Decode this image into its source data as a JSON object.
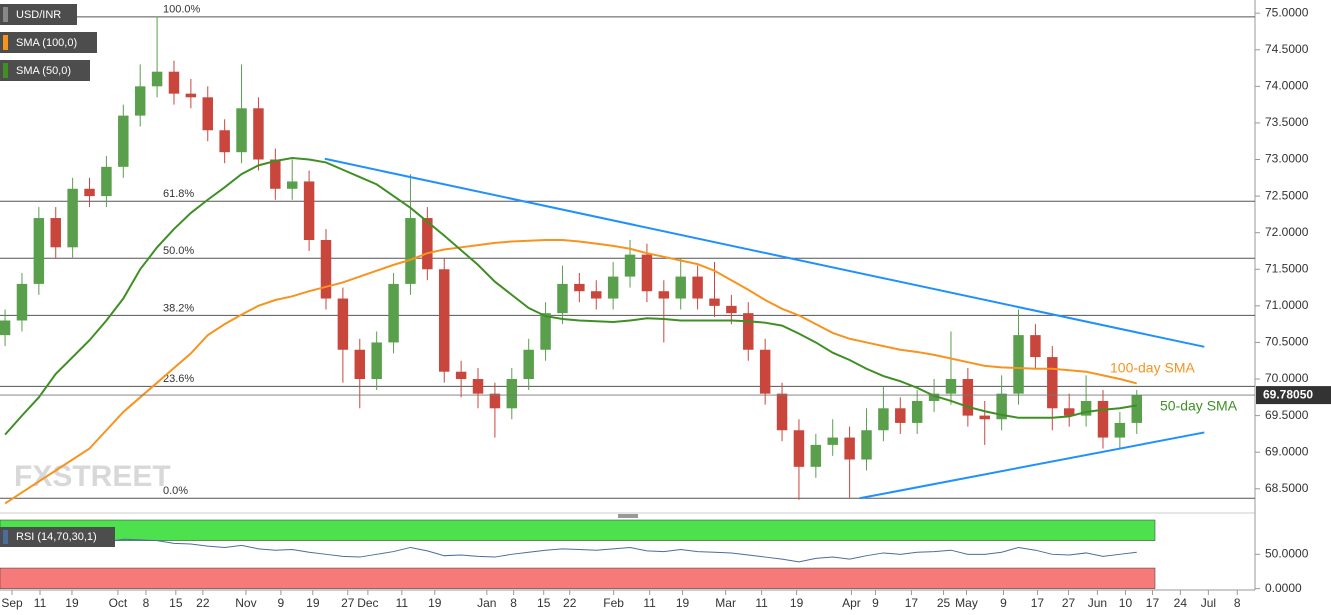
{
  "chart_data": [
    {
      "type": "candlestick",
      "title": "USD/INR",
      "watermark": "FXSTREET",
      "x": [
        0,
        1,
        2,
        3,
        4,
        5,
        6,
        7,
        8,
        9,
        10,
        11,
        12,
        13,
        14,
        15,
        16,
        17,
        18,
        19,
        20,
        21,
        22,
        23,
        24,
        25,
        26,
        27,
        28,
        29,
        30,
        31,
        32,
        33,
        34,
        35,
        36,
        37,
        38,
        39,
        40,
        41,
        42,
        43,
        44,
        45,
        46,
        47,
        48,
        49,
        50,
        51,
        52,
        53,
        54,
        55,
        56,
        57,
        58,
        59,
        60,
        61,
        62,
        63,
        64,
        65,
        66,
        67
      ],
      "open": [
        70.6,
        70.8,
        71.3,
        72.2,
        71.8,
        72.6,
        72.5,
        72.9,
        73.6,
        74.0,
        74.2,
        73.9,
        73.85,
        73.4,
        73.1,
        73.7,
        73.0,
        72.6,
        72.7,
        71.9,
        71.1,
        70.4,
        70.0,
        70.5,
        71.3,
        72.2,
        71.5,
        70.1,
        70.0,
        69.8,
        69.6,
        70.0,
        70.4,
        70.9,
        71.3,
        71.2,
        71.1,
        71.4,
        71.7,
        71.2,
        71.1,
        71.4,
        71.1,
        71.0,
        70.9,
        70.4,
        69.8,
        69.3,
        68.8,
        69.1,
        69.2,
        68.9,
        69.3,
        69.6,
        69.4,
        69.7,
        69.8,
        70.0,
        69.5,
        69.45,
        69.8,
        70.6,
        70.3,
        69.6,
        69.5,
        69.7,
        69.2,
        69.4
      ],
      "high": [
        70.95,
        71.45,
        72.35,
        72.35,
        72.75,
        72.75,
        73.05,
        73.75,
        74.3,
        74.95,
        74.35,
        74.1,
        74.0,
        73.55,
        74.3,
        73.85,
        73.15,
        73.0,
        72.85,
        72.05,
        71.25,
        70.55,
        70.65,
        71.45,
        72.8,
        72.35,
        71.65,
        70.25,
        70.15,
        69.95,
        70.15,
        70.55,
        71.05,
        71.55,
        71.45,
        71.35,
        71.6,
        71.9,
        71.85,
        71.35,
        71.65,
        71.55,
        71.6,
        71.15,
        71.05,
        70.55,
        69.95,
        69.45,
        69.25,
        69.45,
        69.35,
        69.6,
        69.9,
        69.75,
        69.85,
        70.0,
        70.65,
        70.15,
        69.7,
        70.05,
        70.95,
        70.75,
        70.45,
        69.8,
        70.05,
        69.85,
        69.55,
        69.85
      ],
      "low": [
        70.45,
        70.65,
        71.15,
        71.65,
        71.65,
        72.35,
        72.35,
        72.75,
        73.45,
        73.85,
        73.75,
        73.7,
        73.25,
        72.95,
        72.95,
        72.85,
        72.45,
        72.45,
        71.75,
        70.95,
        69.95,
        69.6,
        69.85,
        70.35,
        71.15,
        71.35,
        69.95,
        69.75,
        69.6,
        69.2,
        69.45,
        69.85,
        70.25,
        70.75,
        71.05,
        70.95,
        70.95,
        71.25,
        71.05,
        70.5,
        70.95,
        70.95,
        70.85,
        70.75,
        70.25,
        69.65,
        69.15,
        68.35,
        68.65,
        68.95,
        68.37,
        68.75,
        69.15,
        69.25,
        69.25,
        69.55,
        69.65,
        69.35,
        69.1,
        69.3,
        69.65,
        70.15,
        69.3,
        69.35,
        69.35,
        69.05,
        69.05,
        69.25
      ],
      "close": [
        70.8,
        71.3,
        72.2,
        71.8,
        72.6,
        72.5,
        72.9,
        73.6,
        74.0,
        74.2,
        73.9,
        73.85,
        73.4,
        73.1,
        73.7,
        73.0,
        72.6,
        72.7,
        71.9,
        71.1,
        70.4,
        70.0,
        70.5,
        71.3,
        72.2,
        71.5,
        70.1,
        70.0,
        69.8,
        69.6,
        70.0,
        70.4,
        70.9,
        71.3,
        71.2,
        71.1,
        71.4,
        71.7,
        71.2,
        71.1,
        71.4,
        71.1,
        71.0,
        70.9,
        70.4,
        69.8,
        69.3,
        68.8,
        69.1,
        69.2,
        68.9,
        69.3,
        69.6,
        69.4,
        69.7,
        69.8,
        70.0,
        69.5,
        69.45,
        69.8,
        70.6,
        70.3,
        69.6,
        69.5,
        69.7,
        69.2,
        69.4,
        69.78
      ],
      "up_color": "#5a9f4c",
      "down_color": "#c9463d",
      "overlays": [
        {
          "name": "SMA (100,0)",
          "color": "#f7931e",
          "values": [
            68.3,
            68.45,
            68.6,
            68.75,
            68.9,
            69.05,
            69.3,
            69.55,
            69.75,
            69.95,
            70.15,
            70.35,
            70.6,
            70.75,
            70.88,
            71.0,
            71.08,
            71.13,
            71.2,
            71.26,
            71.32,
            71.4,
            71.48,
            71.56,
            71.63,
            71.72,
            71.77,
            71.8,
            71.83,
            71.86,
            71.88,
            71.89,
            71.9,
            71.9,
            71.88,
            71.85,
            71.82,
            71.78,
            71.72,
            71.67,
            71.62,
            71.57,
            71.48,
            71.35,
            71.22,
            71.08,
            70.96,
            70.87,
            70.75,
            70.63,
            70.55,
            70.5,
            70.45,
            70.4,
            70.37,
            70.33,
            70.28,
            70.23,
            70.18,
            70.16,
            70.15,
            70.14,
            70.14,
            70.12,
            70.1,
            70.05,
            70.0,
            69.94
          ]
        },
        {
          "name": "SMA (50,0)",
          "color": "#3f8f25",
          "values": [
            69.24,
            69.5,
            69.75,
            70.07,
            70.3,
            70.53,
            70.8,
            71.1,
            71.5,
            71.8,
            72.05,
            72.27,
            72.45,
            72.62,
            72.8,
            72.92,
            72.98,
            73.02,
            73.0,
            72.96,
            72.86,
            72.76,
            72.66,
            72.5,
            72.34,
            72.15,
            71.96,
            71.76,
            71.56,
            71.33,
            71.15,
            70.97,
            70.86,
            70.82,
            70.8,
            70.79,
            70.78,
            70.8,
            70.83,
            70.82,
            70.8,
            70.8,
            70.8,
            70.8,
            70.79,
            70.77,
            70.73,
            70.62,
            70.5,
            70.36,
            70.26,
            70.14,
            70.04,
            69.97,
            69.88,
            69.77,
            69.7,
            69.62,
            69.56,
            69.51,
            69.47,
            69.47,
            69.47,
            69.49,
            69.55,
            69.58,
            69.6,
            69.64
          ]
        }
      ],
      "annotations": [
        {
          "text": "100-day SMA",
          "color": "#f7931e"
        },
        {
          "text": "50-day SMA",
          "color": "#3f8f25"
        }
      ],
      "levels": [
        {
          "label": "100.0%",
          "value": 74.95
        },
        {
          "label": "61.8%",
          "value": 72.43
        },
        {
          "label": "50.0%",
          "value": 71.65
        },
        {
          "label": "38.2%",
          "value": 70.87
        },
        {
          "label": "23.6%",
          "value": 69.9
        },
        {
          "label": "0.0%",
          "value": 68.37
        }
      ],
      "trendlines": [
        {
          "color": "#1e90ff",
          "x": [
            18.93,
            71.0
          ],
          "values": [
            73.01,
            70.44
          ]
        },
        {
          "color": "#1e90ff",
          "x": [
            50.59,
            71.0
          ],
          "values": [
            68.37,
            69.27
          ]
        }
      ],
      "last_price": {
        "value": 69.7805,
        "label": "69.78050"
      },
      "xlim": [
        -0.3,
        74
      ],
      "xticks": [
        {
          "value": 0.41,
          "label": "Sep"
        },
        {
          "value": 2.07,
          "label": "11"
        },
        {
          "value": 3.96,
          "label": "19"
        },
        {
          "value": 6.68,
          "label": "Oct"
        },
        {
          "value": 8.34,
          "label": "8"
        },
        {
          "value": 10.11,
          "label": "15"
        },
        {
          "value": 11.71,
          "label": "22"
        },
        {
          "value": 14.26,
          "label": "Nov"
        },
        {
          "value": 16.33,
          "label": "9"
        },
        {
          "value": 18.22,
          "label": "19"
        },
        {
          "value": 20.29,
          "label": "27"
        },
        {
          "value": 21.48,
          "label": "Dec"
        },
        {
          "value": 23.49,
          "label": "11"
        },
        {
          "value": 25.44,
          "label": "19"
        },
        {
          "value": 28.52,
          "label": "Jan"
        },
        {
          "value": 30.11,
          "label": "8"
        },
        {
          "value": 31.89,
          "label": "15"
        },
        {
          "value": 33.43,
          "label": "22"
        },
        {
          "value": 36.03,
          "label": "Feb"
        },
        {
          "value": 38.16,
          "label": "11"
        },
        {
          "value": 40.11,
          "label": "19"
        },
        {
          "value": 42.66,
          "label": "Mar"
        },
        {
          "value": 44.79,
          "label": "11"
        },
        {
          "value": 46.86,
          "label": "19"
        },
        {
          "value": 50.11,
          "label": "Apr"
        },
        {
          "value": 51.53,
          "label": "9"
        },
        {
          "value": 53.66,
          "label": "17"
        },
        {
          "value": 55.56,
          "label": "25"
        },
        {
          "value": 56.92,
          "label": "May"
        },
        {
          "value": 59.11,
          "label": "9"
        },
        {
          "value": 61.12,
          "label": "17"
        },
        {
          "value": 62.96,
          "label": "27"
        },
        {
          "value": 64.67,
          "label": "Jun"
        },
        {
          "value": 66.33,
          "label": "10"
        },
        {
          "value": 67.93,
          "label": "17"
        },
        {
          "value": 69.58,
          "label": "24"
        },
        {
          "value": 71.24,
          "label": "Jul"
        },
        {
          "value": 72.95,
          "label": "8"
        }
      ],
      "ylim": [
        68.21,
        75.18
      ],
      "yticks": [
        {
          "value": 68.5,
          "label": "68.5000"
        },
        {
          "value": 69,
          "label": "69.0000"
        },
        {
          "value": 69.5,
          "label": "69.5000"
        },
        {
          "value": 70,
          "label": "70.0000"
        },
        {
          "value": 70.5,
          "label": "70.5000"
        },
        {
          "value": 71,
          "label": "71.0000"
        },
        {
          "value": 71.5,
          "label": "71.5000"
        },
        {
          "value": 72,
          "label": "72.0000"
        },
        {
          "value": 72.5,
          "label": "72.5000"
        },
        {
          "value": 73,
          "label": "73.0000"
        },
        {
          "value": 73.5,
          "label": "73.5000"
        },
        {
          "value": 74,
          "label": "74.0000"
        },
        {
          "value": 74.5,
          "label": "74.5000"
        },
        {
          "value": 75,
          "label": "75.0000"
        }
      ]
    },
    {
      "type": "line",
      "title": "RSI (14,70,30,1)",
      "color": "#4a6d9c",
      "x": [
        0,
        1,
        2,
        3,
        4,
        5,
        6,
        7,
        8,
        9,
        10,
        11,
        12,
        13,
        14,
        15,
        16,
        17,
        18,
        19,
        20,
        21,
        22,
        23,
        24,
        25,
        26,
        27,
        28,
        29,
        30,
        31,
        32,
        33,
        34,
        35,
        36,
        37,
        38,
        39,
        40,
        41,
        42,
        43,
        44,
        45,
        46,
        47,
        48,
        49,
        50,
        51,
        52,
        53,
        54,
        55,
        56,
        57,
        58,
        59,
        60,
        61,
        62,
        63,
        64,
        65,
        66,
        67
      ],
      "values": [
        62,
        64,
        66,
        63,
        67,
        65,
        68,
        72,
        71,
        70,
        66,
        65,
        62,
        60,
        63,
        58,
        56,
        57,
        53,
        50,
        47,
        46,
        50,
        54,
        60,
        55,
        48,
        49,
        47,
        46,
        50,
        53,
        56,
        58,
        57,
        56,
        58,
        60,
        55,
        54,
        57,
        54,
        53,
        52,
        49,
        46,
        43,
        39,
        44,
        46,
        43,
        48,
        52,
        50,
        53,
        54,
        56,
        50,
        50,
        53,
        60,
        56,
        50,
        49,
        52,
        47,
        50,
        53
      ],
      "bands": [
        {
          "from": 70,
          "to": 100,
          "color": "#4de24d"
        },
        {
          "from": 0,
          "to": 30,
          "color": "#f77a7a"
        }
      ],
      "xlim": [
        -0.3,
        74
      ],
      "ylim": [
        -2,
        100
      ],
      "yticks": [
        {
          "value": 50,
          "label": "50.0000"
        },
        {
          "value": 0,
          "label": "0.0000"
        }
      ]
    }
  ]
}
